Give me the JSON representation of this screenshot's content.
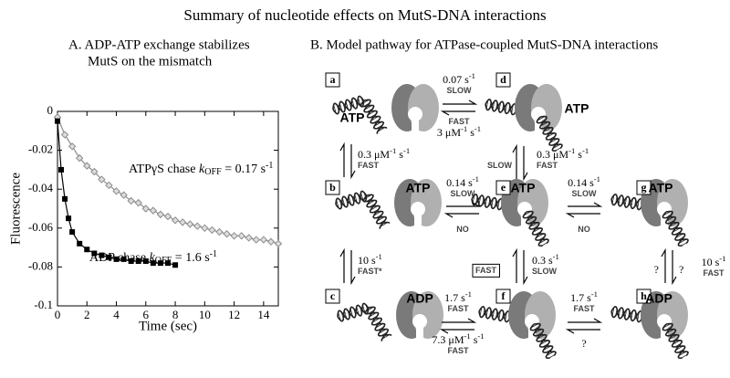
{
  "title": "Summary of nucleotide effects on MutS-DNA interactions",
  "chart_data": {
    "type": "scatter",
    "title": [
      "A.  ADP-ATP exchange stabilizes",
      "MutS on the mismatch"
    ],
    "xlabel": "Time (sec)",
    "ylabel": "Fluorescence",
    "xlim": [
      0,
      15
    ],
    "ylim": [
      -0.1,
      0
    ],
    "xticks": [
      0,
      2,
      4,
      6,
      8,
      10,
      12,
      14
    ],
    "yticks": [
      0,
      -0.02,
      -0.04,
      -0.06,
      -0.08,
      -0.1
    ],
    "series": [
      {
        "color": "#8c8c8c",
        "marker": "diamond",
        "x": [
          0,
          0.5,
          1,
          1.5,
          2,
          2.5,
          3,
          3.5,
          4,
          4.5,
          5,
          5.5,
          6,
          6.5,
          7,
          7.5,
          8,
          8.5,
          9,
          9.5,
          10,
          10.5,
          11,
          11.5,
          12,
          12.5,
          13,
          13.5,
          14,
          14.5,
          15
        ],
        "values": [
          -0.003,
          -0.012,
          -0.018,
          -0.024,
          -0.028,
          -0.031,
          -0.035,
          -0.038,
          -0.041,
          -0.043,
          -0.046,
          -0.047,
          -0.05,
          -0.051,
          -0.053,
          -0.054,
          -0.056,
          -0.057,
          -0.058,
          -0.059,
          -0.06,
          -0.061,
          -0.062,
          -0.063,
          -0.064,
          -0.064,
          -0.065,
          -0.066,
          -0.066,
          -0.067,
          -0.068
        ]
      },
      {
        "color": "#000000",
        "marker": "square",
        "x": [
          0,
          0.25,
          0.5,
          0.75,
          1,
          1.5,
          2,
          2.5,
          3,
          3.5,
          4,
          4.5,
          5,
          5.5,
          6,
          6.5,
          7,
          7.5,
          8
        ],
        "values": [
          -0.005,
          -0.03,
          -0.045,
          -0.055,
          -0.062,
          -0.068,
          -0.071,
          -0.073,
          -0.074,
          -0.075,
          -0.076,
          -0.076,
          -0.077,
          -0.077,
          -0.077,
          -0.078,
          -0.078,
          -0.078,
          -0.079
        ]
      }
    ],
    "annotations": [
      [
        "ATPγS chase ",
        {
          "italic": "k"
        },
        {
          "sub": "OFF"
        },
        " = 0.17 s",
        {
          "sup": "-1"
        }
      ],
      [
        "ADP chase ",
        {
          "italic": "k"
        },
        {
          "sub": "OFF"
        },
        " = 1.6 s",
        {
          "sup": "-1"
        }
      ]
    ]
  },
  "diagram": {
    "title": "B.  Model pathway for ATPase-coupled MutS-DNA interactions",
    "nodes": [
      {
        "id": "a",
        "nucleotide": "ATP"
      },
      {
        "id": "d",
        "nucleotide": "ATP"
      },
      {
        "id": "b",
        "nucleotide": "ATP"
      },
      {
        "id": "e",
        "nucleotide": "ATP"
      },
      {
        "id": "g",
        "nucleotide": "ATP"
      },
      {
        "id": "c",
        "nucleotide": "ADP"
      },
      {
        "id": "f"
      },
      {
        "id": "h",
        "nucleotide": "ADP"
      }
    ],
    "edges": [
      {
        "labels": [
          [
            [
              "0.07 s",
              {
                "sup": "-1"
              }
            ],
            [
              "SLOW"
            ]
          ],
          [
            [
              "FAST"
            ],
            [
              "3 μM",
              {
                "sup": "-1"
              },
              " s",
              {
                "sup": "-1"
              }
            ]
          ]
        ]
      },
      {
        "labels": [
          [
            [
              "0.3 μM",
              {
                "sup": "-1"
              },
              " s",
              {
                "sup": "-1"
              }
            ],
            [
              "FAST"
            ]
          ]
        ]
      },
      {
        "labels": [
          [
            [
              "SLOW"
            ]
          ],
          [
            [
              "0.3 μM",
              {
                "sup": "-1"
              },
              " s",
              {
                "sup": "-1"
              }
            ],
            [
              "FAST"
            ]
          ]
        ]
      },
      {
        "labels": [
          [
            [
              "0.14 s",
              {
                "sup": "-1"
              }
            ],
            [
              "SLOW"
            ]
          ],
          [
            [
              "NO"
            ]
          ]
        ]
      },
      {
        "labels": [
          [
            [
              "0.14 s",
              {
                "sup": "-1"
              }
            ],
            [
              "SLOW"
            ]
          ],
          [
            [
              "NO"
            ]
          ]
        ]
      },
      {
        "labels": [
          [
            [
              "10 s",
              {
                "sup": "-1"
              }
            ],
            [
              "FAST*"
            ]
          ]
        ]
      },
      {
        "labels": [
          [
            [
              {
                "boxed": "FAST"
              }
            ]
          ],
          [
            [
              "0.3 s",
              {
                "sup": "-1"
              }
            ],
            [
              "SLOW"
            ]
          ]
        ]
      },
      {
        "labels": [
          [
            [
              "?"
            ]
          ],
          [
            [
              "?"
            ]
          ],
          [
            [
              "10 s",
              {
                "sup": "-1"
              }
            ],
            [
              "FAST"
            ]
          ]
        ]
      },
      {
        "labels": [
          [
            [
              "1.7 s",
              {
                "sup": "-1"
              }
            ],
            [
              "FAST"
            ]
          ],
          [
            [
              "7.3 μM",
              {
                "sup": "-1"
              },
              " s",
              {
                "sup": "-1"
              }
            ],
            [
              "FAST"
            ]
          ]
        ]
      },
      {
        "labels": [
          [
            [
              "1.7 s",
              {
                "sup": "-1"
              }
            ],
            [
              "FAST"
            ]
          ],
          [
            [
              "?"
            ]
          ]
        ]
      }
    ]
  }
}
